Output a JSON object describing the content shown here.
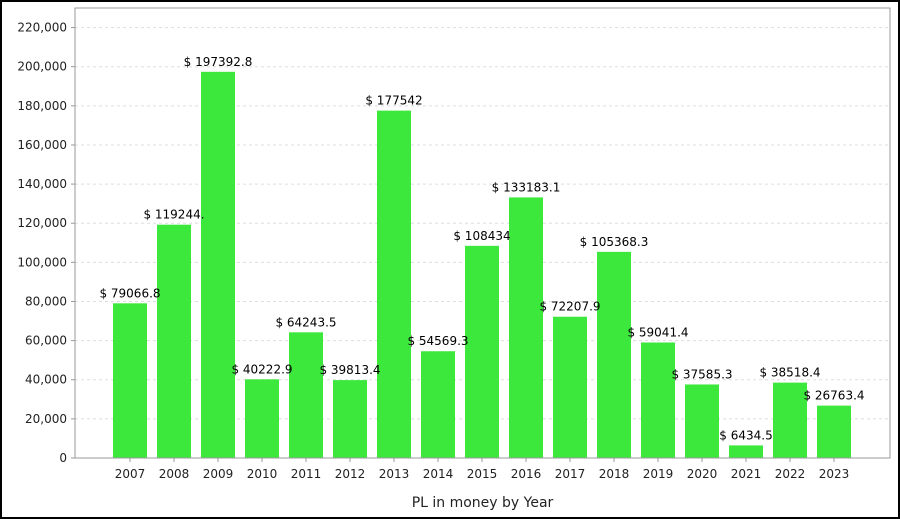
{
  "chart_data": {
    "type": "bar",
    "title": "",
    "xlabel": "PL in money by Year",
    "ylabel": "",
    "categories": [
      "2007",
      "2008",
      "2009",
      "2010",
      "2011",
      "2012",
      "2013",
      "2014",
      "2015",
      "2016",
      "2017",
      "2018",
      "2019",
      "2020",
      "2021",
      "2022",
      "2023"
    ],
    "values": [
      79066.8,
      119244.0,
      197392.8,
      40222.9,
      64243.5,
      39813.4,
      177542,
      54569.3,
      108434,
      133183.1,
      72207.9,
      105368.3,
      59041.4,
      37585.3,
      6434.5,
      38518.4,
      26763.4
    ],
    "data_labels": [
      "$ 79066.8",
      "$ 119244.",
      "$ 197392.8",
      "$ 40222.9",
      "$ 64243.5",
      "$ 39813.4",
      "$ 177542",
      "$ 54569.3",
      "$ 108434",
      "$ 133183.1",
      "$ 72207.9",
      "$ 105368.3",
      "$ 59041.4",
      "$ 37585.3",
      "$ 6434.5",
      "$ 38518.4",
      "$ 26763.4"
    ],
    "ylim": [
      0,
      230000
    ],
    "yticks": [
      0,
      20000,
      40000,
      60000,
      80000,
      100000,
      120000,
      140000,
      160000,
      180000,
      200000,
      220000
    ],
    "ytick_labels": [
      "0",
      "20,000",
      "40,000",
      "60,000",
      "80,000",
      "100,000",
      "120,000",
      "140,000",
      "160,000",
      "180,000",
      "200,000",
      "220,000"
    ],
    "grid": true,
    "bar_color": "#3de83d"
  }
}
